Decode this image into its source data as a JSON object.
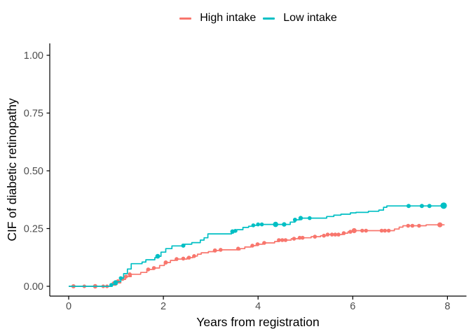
{
  "legend": {
    "items": [
      {
        "label": "High intake",
        "color": "#F8766D"
      },
      {
        "label": "Low intake",
        "color": "#00BFC4"
      }
    ]
  },
  "axes": {
    "x": {
      "title": "Years from registration",
      "ticks": [
        {
          "value": 0,
          "label": "0"
        },
        {
          "value": 2,
          "label": "2"
        },
        {
          "value": 4,
          "label": "4"
        },
        {
          "value": 6,
          "label": "6"
        },
        {
          "value": 8,
          "label": "8"
        }
      ]
    },
    "y": {
      "title": "CIF of diabetic retinopathy",
      "ticks": [
        {
          "value": 0,
          "label": "0.00"
        },
        {
          "value": 0.25,
          "label": "0.25"
        },
        {
          "value": 0.5,
          "label": "0.50"
        },
        {
          "value": 0.75,
          "label": "0.75"
        },
        {
          "value": 1,
          "label": "1.00"
        }
      ]
    }
  },
  "colors": {
    "axis_line": "#000000",
    "tick_text": "#4d4d4d",
    "title_text": "#000000",
    "background": "#ffffff",
    "high_intake": "#F8766D",
    "low_intake": "#00BFC4"
  },
  "chart_data": {
    "type": "line",
    "subtype": "step-cumulative-incidence",
    "title": "",
    "xlabel": "Years from registration",
    "ylabel": "CIF of diabetic retinopathy",
    "xlim": [
      0,
      8
    ],
    "ylim": [
      0,
      1
    ],
    "grid": false,
    "legend_position": "top-center",
    "series": [
      {
        "name": "High intake",
        "color": "#F8766D",
        "interpolation": "step-after",
        "end_x": 7.94,
        "steps": [
          [
            0,
            0
          ],
          [
            0.88,
            0.005
          ],
          [
            1.0,
            0.015
          ],
          [
            1.1,
            0.03
          ],
          [
            1.2,
            0.042
          ],
          [
            1.32,
            0.052
          ],
          [
            1.52,
            0.06
          ],
          [
            1.65,
            0.073
          ],
          [
            1.8,
            0.079
          ],
          [
            1.92,
            0.09
          ],
          [
            2.02,
            0.103
          ],
          [
            2.15,
            0.112
          ],
          [
            2.25,
            0.118
          ],
          [
            2.5,
            0.124
          ],
          [
            2.62,
            0.131
          ],
          [
            2.72,
            0.139
          ],
          [
            2.8,
            0.145
          ],
          [
            2.95,
            0.15
          ],
          [
            3.06,
            0.155
          ],
          [
            3.18,
            0.158
          ],
          [
            3.62,
            0.163
          ],
          [
            3.72,
            0.17
          ],
          [
            3.85,
            0.176
          ],
          [
            3.96,
            0.182
          ],
          [
            4.1,
            0.188
          ],
          [
            4.35,
            0.194
          ],
          [
            4.45,
            0.2
          ],
          [
            4.7,
            0.206
          ],
          [
            4.85,
            0.21
          ],
          [
            5.12,
            0.215
          ],
          [
            5.32,
            0.219
          ],
          [
            5.45,
            0.224
          ],
          [
            5.78,
            0.23
          ],
          [
            5.9,
            0.236
          ],
          [
            6.0,
            0.241
          ],
          [
            6.88,
            0.248
          ],
          [
            6.98,
            0.256
          ],
          [
            7.06,
            0.262
          ],
          [
            7.55,
            0.266
          ]
        ],
        "censor_marks": [
          [
            0.1,
            0,
            3
          ],
          [
            0.33,
            0,
            2.6
          ],
          [
            0.56,
            0,
            3.2
          ],
          [
            0.73,
            0,
            2.6
          ],
          [
            0.81,
            0,
            2.6
          ],
          [
            0.95,
            0.013,
            2.8
          ],
          [
            1.04,
            0.022,
            2.8
          ],
          [
            1.14,
            0.032,
            2.8
          ],
          [
            1.21,
            0.042,
            2.8
          ],
          [
            1.29,
            0.052,
            2.8
          ],
          [
            1.68,
            0.073,
            2.8
          ],
          [
            1.8,
            0.079,
            2.8
          ],
          [
            2.05,
            0.103,
            3
          ],
          [
            2.28,
            0.118,
            2.8
          ],
          [
            2.42,
            0.12,
            2.8
          ],
          [
            2.54,
            0.124,
            2.8
          ],
          [
            2.65,
            0.131,
            2.8
          ],
          [
            3.09,
            0.155,
            3
          ],
          [
            3.21,
            0.158,
            2.8
          ],
          [
            3.58,
            0.163,
            2.8
          ],
          [
            3.88,
            0.176,
            2.8
          ],
          [
            3.99,
            0.182,
            2.8
          ],
          [
            4.13,
            0.188,
            2.8
          ],
          [
            4.44,
            0.2,
            2.8
          ],
          [
            4.51,
            0.2,
            2.8
          ],
          [
            4.58,
            0.2,
            2.8
          ],
          [
            4.76,
            0.206,
            2.8
          ],
          [
            4.88,
            0.21,
            2.8
          ],
          [
            4.94,
            0.21,
            2.8
          ],
          [
            5.2,
            0.215,
            2.8
          ],
          [
            5.39,
            0.219,
            2.8
          ],
          [
            5.47,
            0.224,
            2.8
          ],
          [
            5.56,
            0.224,
            2.8
          ],
          [
            5.63,
            0.224,
            2.8
          ],
          [
            5.7,
            0.224,
            2.8
          ],
          [
            5.81,
            0.23,
            2.8
          ],
          [
            5.95,
            0.236,
            2.8
          ],
          [
            6.03,
            0.241,
            3.6
          ],
          [
            6.2,
            0.241,
            2.8
          ],
          [
            6.28,
            0.241,
            2.8
          ],
          [
            6.61,
            0.241,
            2.8
          ],
          [
            6.68,
            0.241,
            2.8
          ],
          [
            6.76,
            0.241,
            2.8
          ],
          [
            7.17,
            0.262,
            2.8
          ],
          [
            7.26,
            0.262,
            2.8
          ],
          [
            7.4,
            0.262,
            2.8
          ],
          [
            7.84,
            0.266,
            3.6
          ]
        ]
      },
      {
        "name": "Low intake",
        "color": "#00BFC4",
        "interpolation": "step-after",
        "end_x": 7.97,
        "steps": [
          [
            0,
            0
          ],
          [
            0.92,
            0.008
          ],
          [
            1.02,
            0.02
          ],
          [
            1.1,
            0.035
          ],
          [
            1.16,
            0.055
          ],
          [
            1.24,
            0.075
          ],
          [
            1.32,
            0.098
          ],
          [
            1.55,
            0.105
          ],
          [
            1.63,
            0.115
          ],
          [
            1.82,
            0.124
          ],
          [
            1.88,
            0.13
          ],
          [
            1.95,
            0.148
          ],
          [
            2.05,
            0.163
          ],
          [
            2.18,
            0.175
          ],
          [
            2.45,
            0.182
          ],
          [
            2.6,
            0.189
          ],
          [
            2.78,
            0.2
          ],
          [
            2.86,
            0.21
          ],
          [
            2.94,
            0.227
          ],
          [
            3.44,
            0.237
          ],
          [
            3.55,
            0.245
          ],
          [
            3.68,
            0.255
          ],
          [
            3.8,
            0.26
          ],
          [
            3.9,
            0.264
          ],
          [
            4.0,
            0.268
          ],
          [
            4.68,
            0.278
          ],
          [
            4.78,
            0.288
          ],
          [
            4.88,
            0.295
          ],
          [
            5.45,
            0.302
          ],
          [
            5.6,
            0.308
          ],
          [
            5.75,
            0.312
          ],
          [
            5.95,
            0.318
          ],
          [
            6.07,
            0.32
          ],
          [
            6.33,
            0.325
          ],
          [
            6.55,
            0.33
          ],
          [
            6.65,
            0.342
          ],
          [
            6.72,
            0.348
          ]
        ],
        "censor_marks": [
          [
            0.9,
            0.006,
            2.8
          ],
          [
            0.99,
            0.016,
            3.4
          ],
          [
            1.1,
            0.035,
            2.8
          ],
          [
            1.88,
            0.13,
            3.4
          ],
          [
            2.42,
            0.176,
            3
          ],
          [
            3.46,
            0.237,
            3.2
          ],
          [
            3.52,
            0.24,
            2.8
          ],
          [
            3.9,
            0.264,
            2.8
          ],
          [
            4.0,
            0.268,
            2.8
          ],
          [
            4.08,
            0.268,
            2.8
          ],
          [
            4.37,
            0.268,
            3.8
          ],
          [
            4.55,
            0.268,
            3.2
          ],
          [
            4.78,
            0.288,
            3
          ],
          [
            4.9,
            0.295,
            3.2
          ],
          [
            5.09,
            0.295,
            2.8
          ],
          [
            7.18,
            0.348,
            3
          ],
          [
            7.46,
            0.348,
            3
          ],
          [
            7.62,
            0.348,
            3
          ],
          [
            7.92,
            0.349,
            4.6
          ]
        ]
      }
    ]
  }
}
